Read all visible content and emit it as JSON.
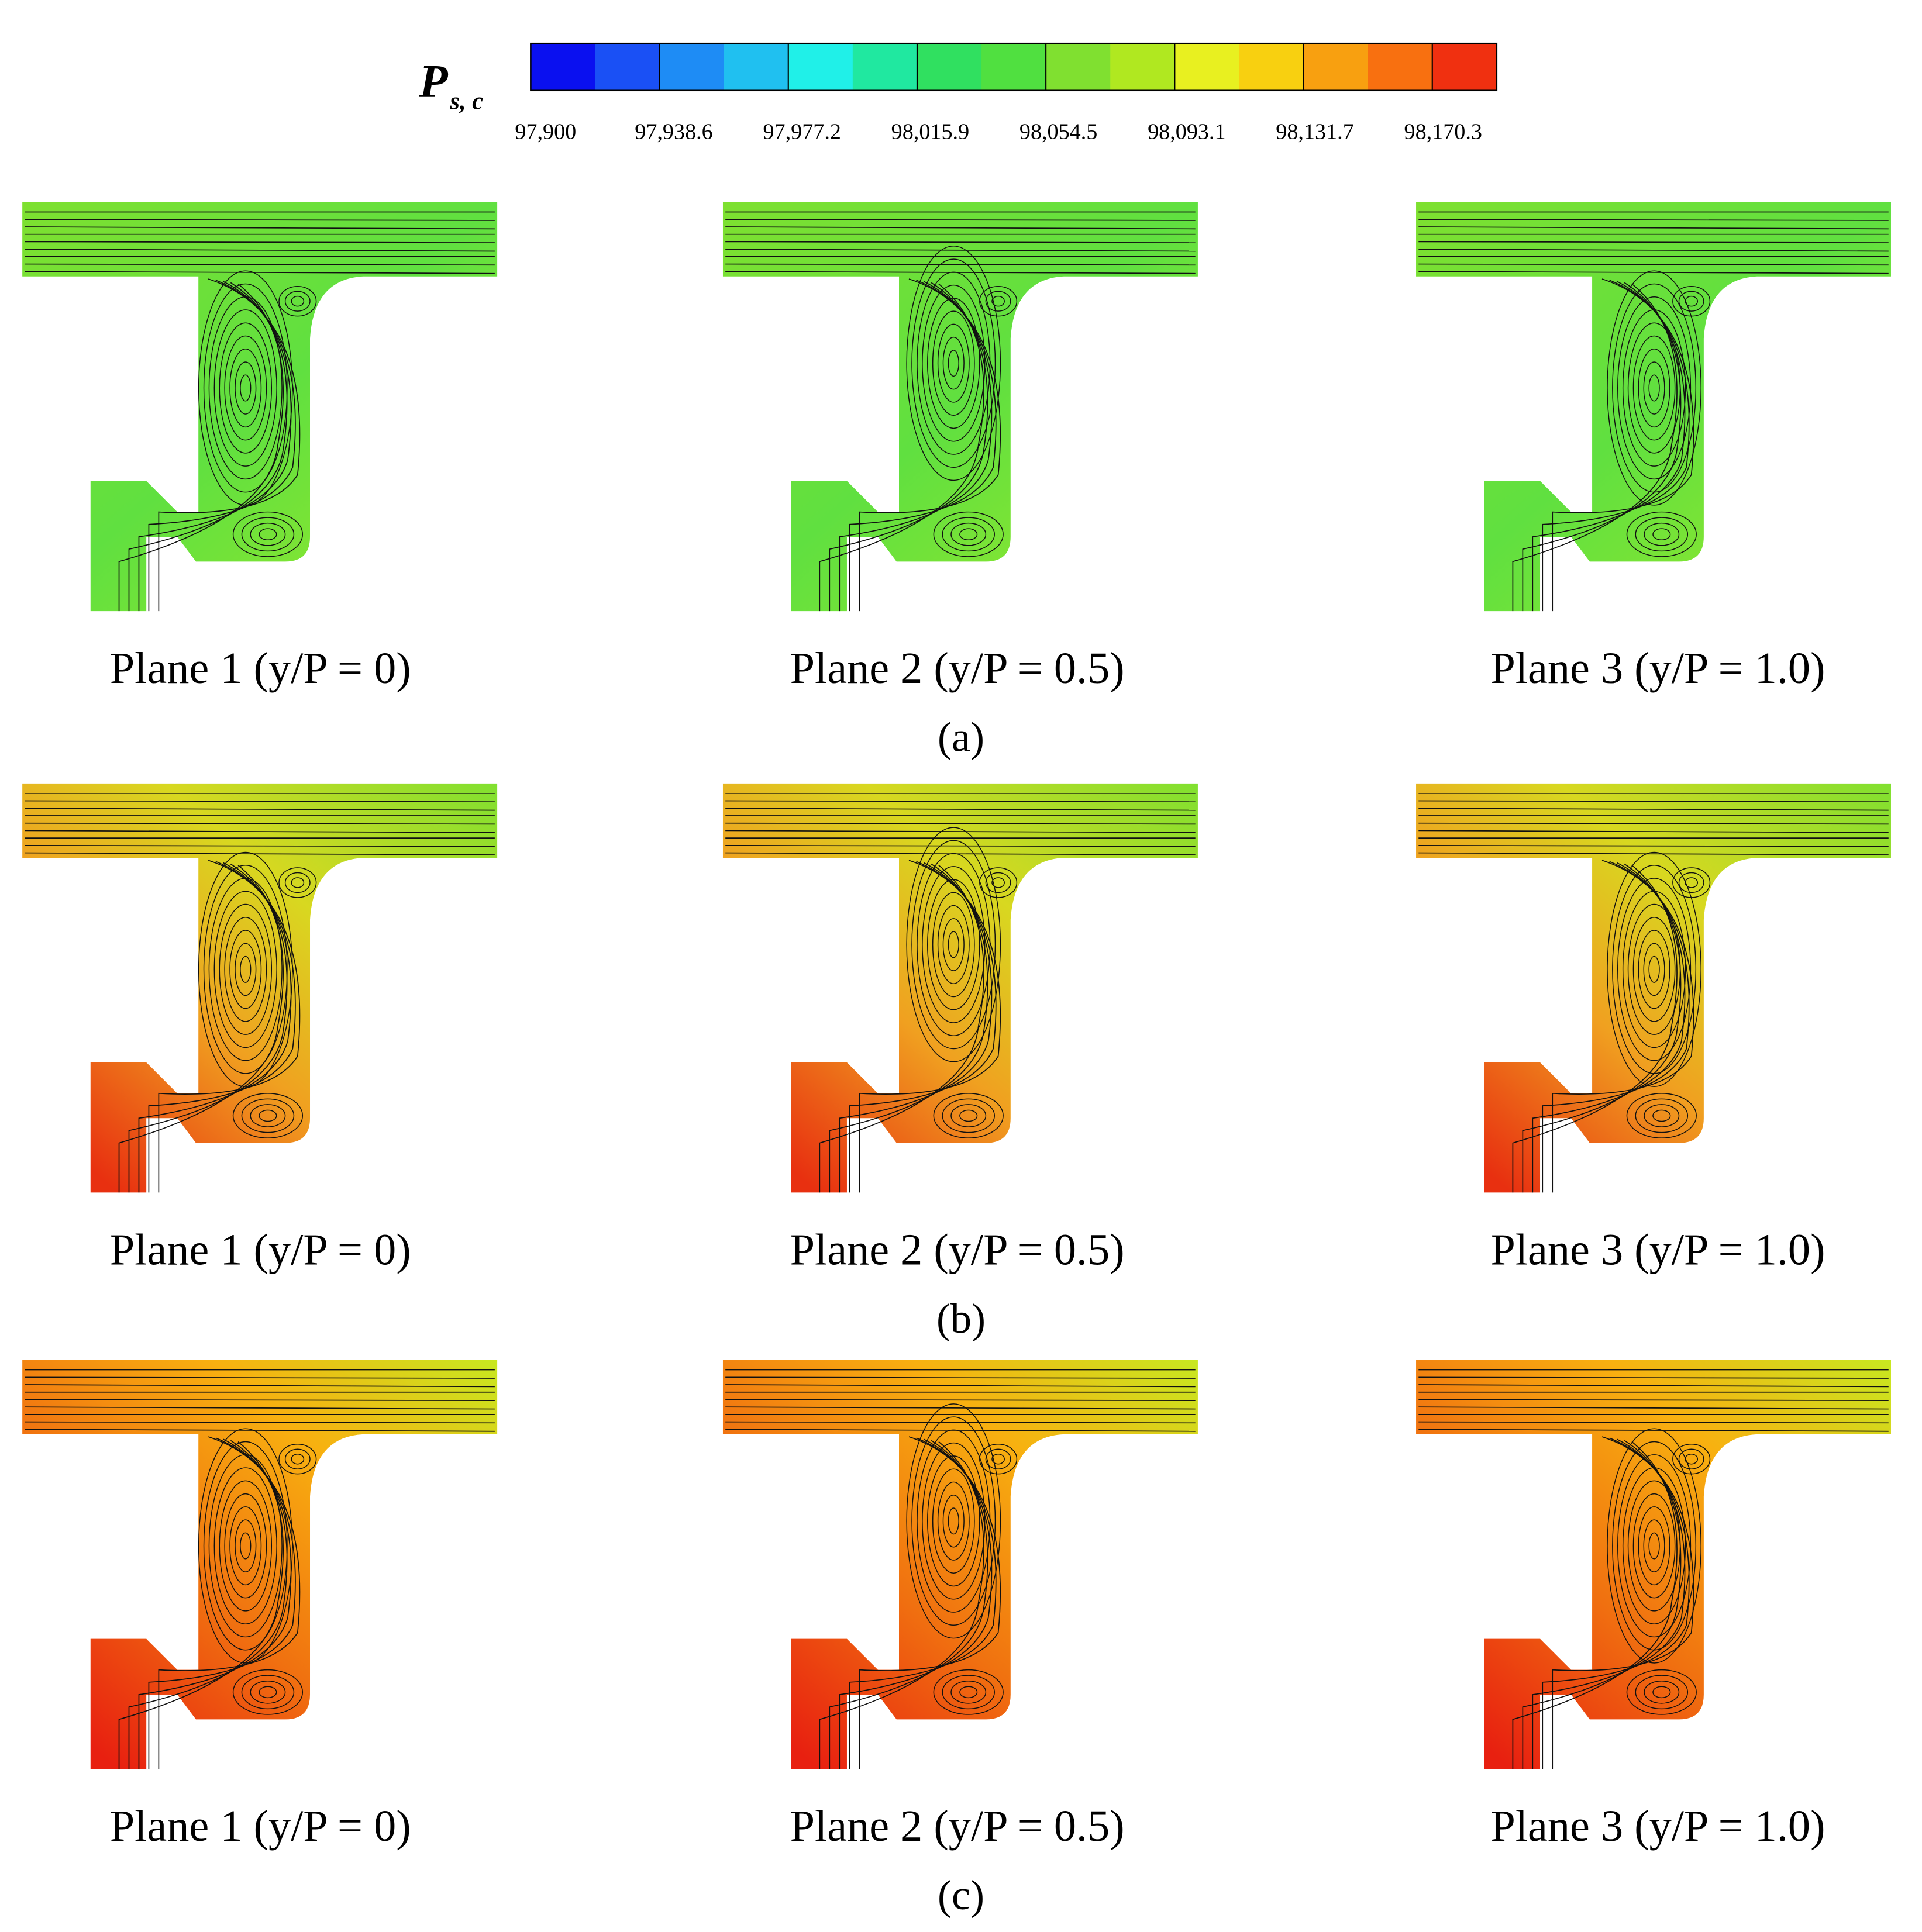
{
  "colorbar": {
    "symbol": "P",
    "subscript": "s, c",
    "ticks": [
      "97,900",
      "97,938.6",
      "97,977.2",
      "98,015.9",
      "98,054.5",
      "98,093.1",
      "98,131.7",
      "98,170.3"
    ]
  },
  "rows": [
    {
      "label": "(a)",
      "planes": [
        "Plane 1 (y/P = 0)",
        "Plane 2 (y/P = 0.5)",
        "Plane 3 (y/P = 1.0)"
      ]
    },
    {
      "label": "(b)",
      "planes": [
        "Plane 1 (y/P = 0)",
        "Plane 2 (y/P = 0.5)",
        "Plane 3 (y/P = 1.0)"
      ]
    },
    {
      "label": "(c)",
      "planes": [
        "Plane 1 (y/P = 0)",
        "Plane 2 (y/P = 0.5)",
        "Plane 3 (y/P = 1.0)"
      ]
    }
  ]
}
